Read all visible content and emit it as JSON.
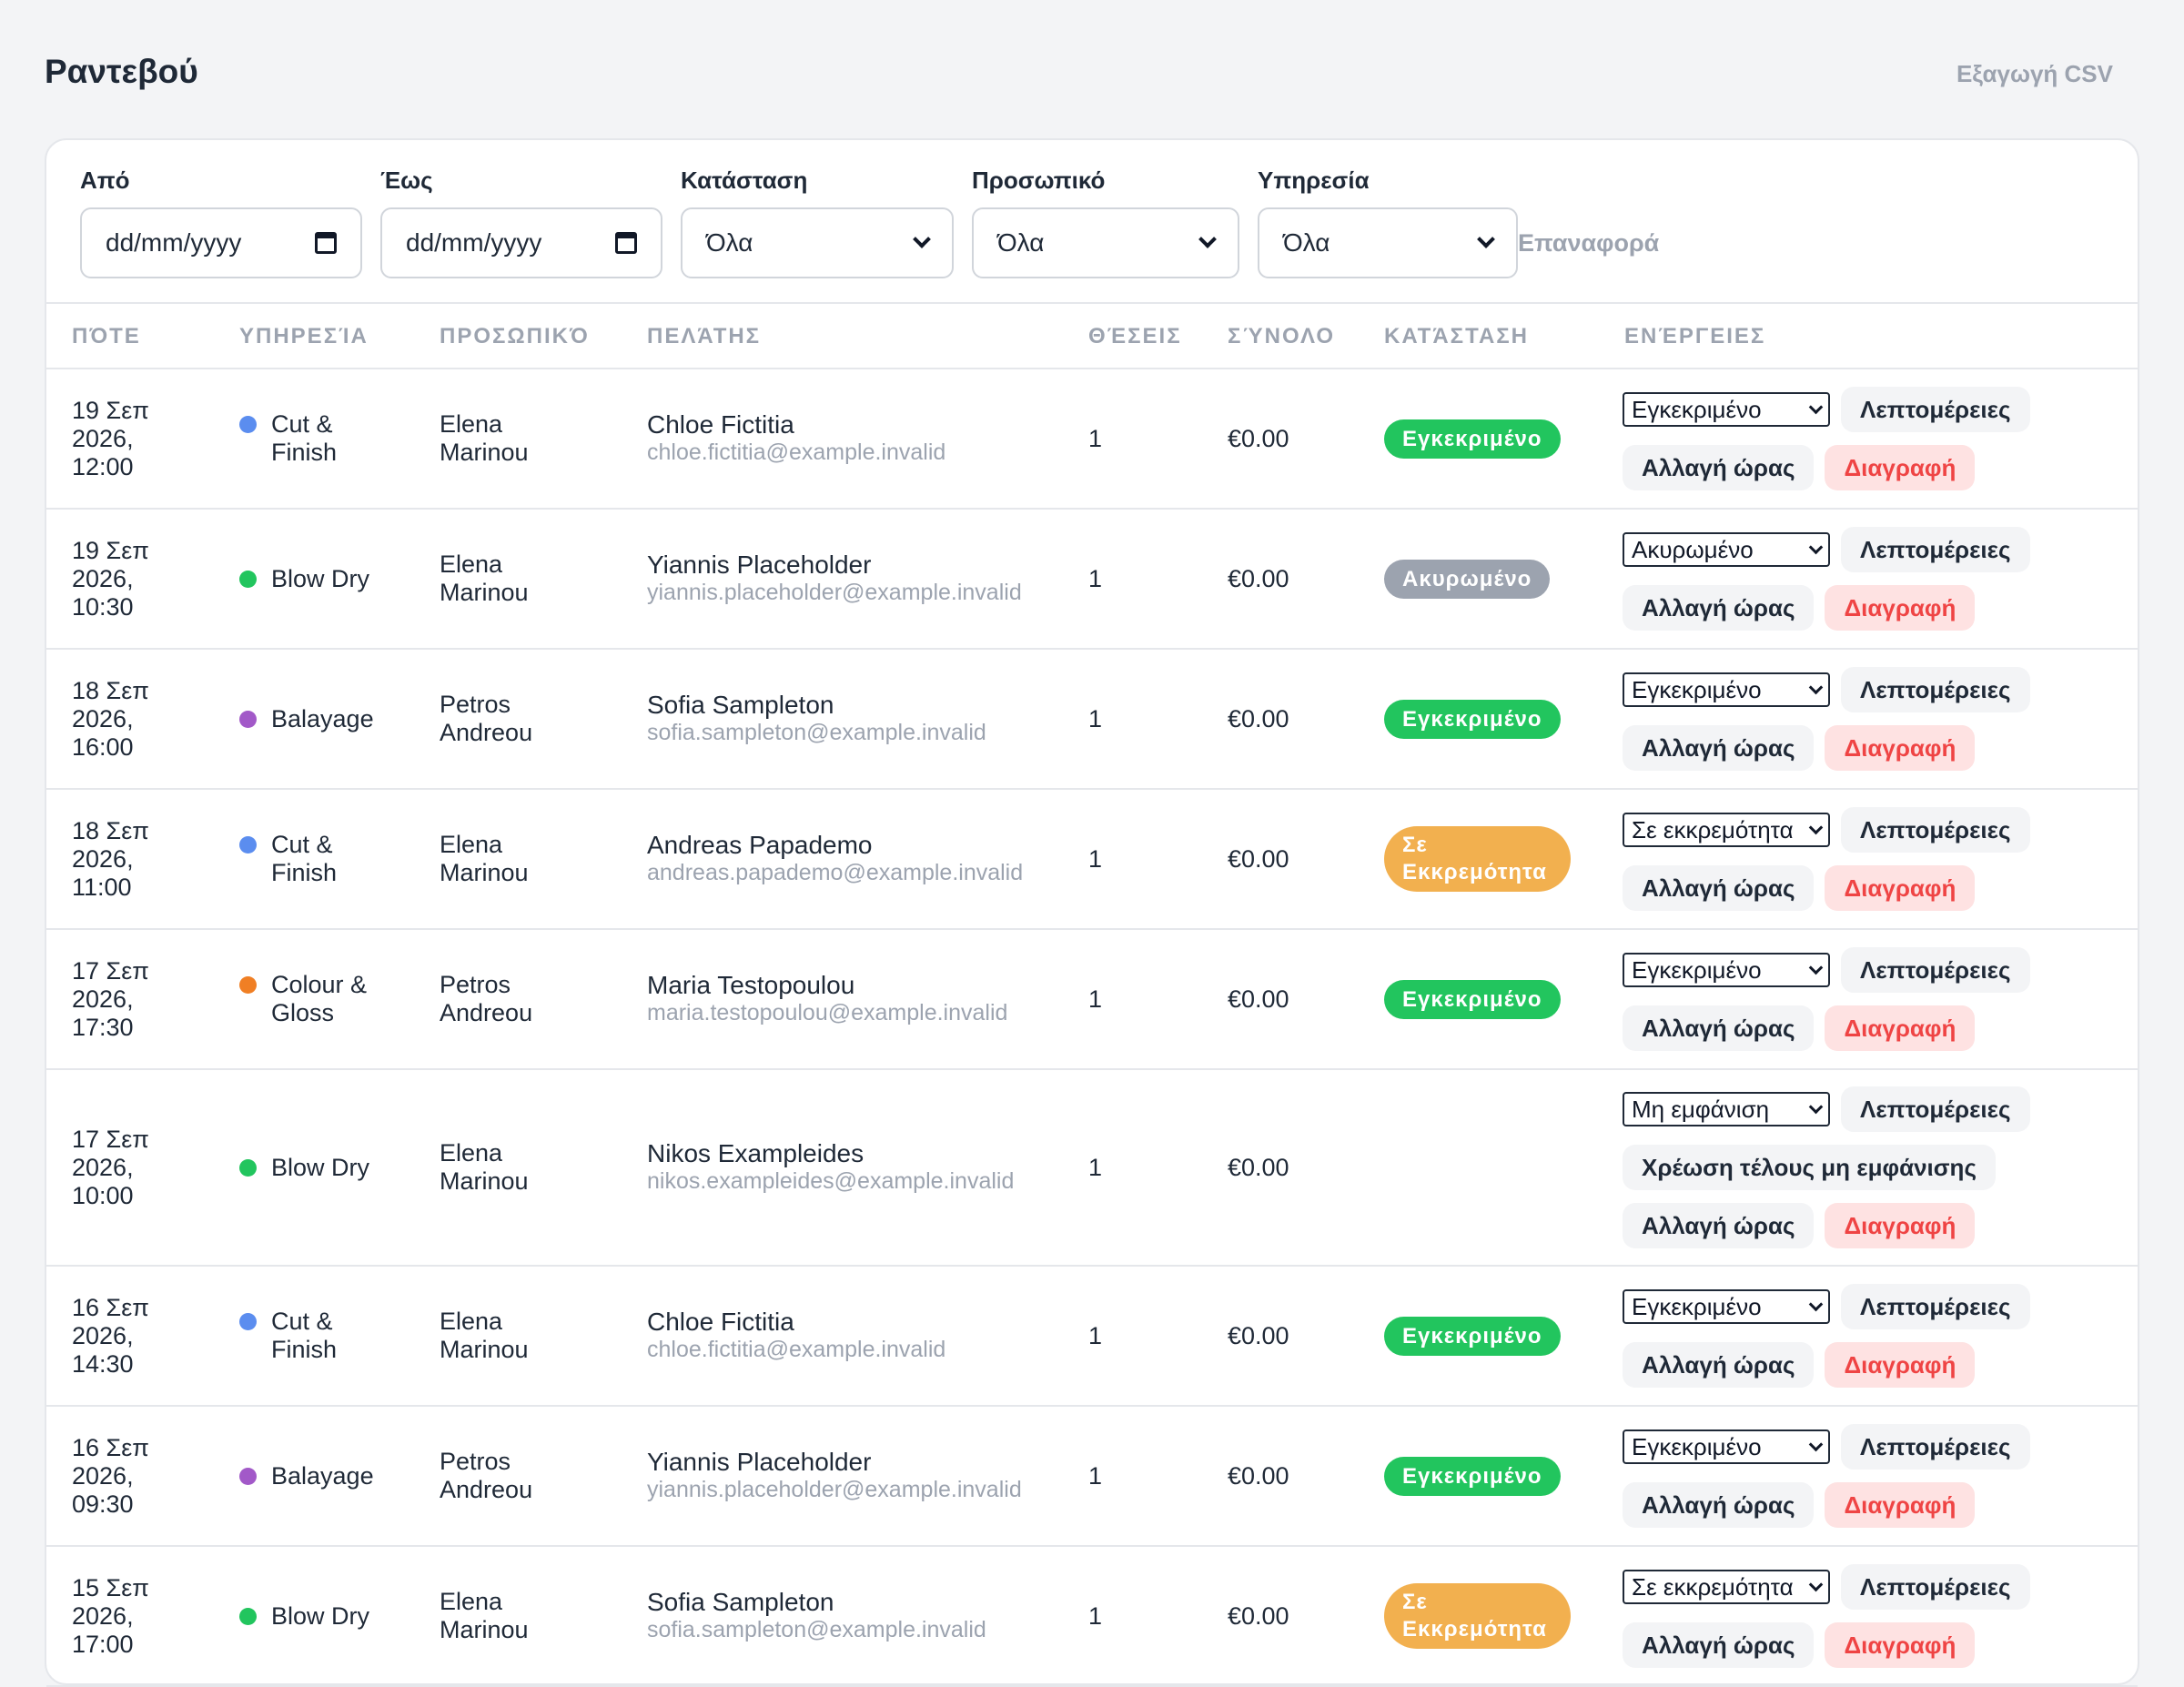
{
  "header": {
    "title": "Ραντεβού",
    "export_label": "Εξαγωγή CSV"
  },
  "filters": {
    "from_label": "Από",
    "from_value": "dd/mm/yyyy",
    "to_label": "Έως",
    "to_value": "dd/mm/yyyy",
    "status_label": "Κατάσταση",
    "status_value": "Όλα",
    "staff_label": "Προσωπικό",
    "staff_value": "Όλα",
    "service_label": "Υπηρεσία",
    "service_value": "Όλα",
    "reset_label": "Επαναφορά"
  },
  "table": {
    "headers": [
      "ΠΌΤΕ",
      "ΥΠΗΡΕΣΊΑ",
      "ΠΡΟΣΩΠΙΚΌ",
      "ΠΕΛΆΤΗΣ",
      "ΘΈΣΕΙΣ",
      "ΣΎΝΟΛΟ",
      "ΚΑΤΆΣΤΑΣΗ",
      "ΕΝΈΡΓΕΙΕΣ"
    ],
    "buttons": {
      "details": "Λεπτομέρειες",
      "reschedule": "Αλλαγή ώρας",
      "delete": "Διαγραφή",
      "noshow_fee": "Χρέωση τέλους μη εμφάνισης"
    },
    "colors": {
      "Cut & Finish": "#5b8def",
      "Blow Dry": "#22c55e",
      "Balayage": "#a259c8",
      "Colour & Gloss": "#f07f24"
    },
    "rows": [
      {
        "when": "19 Σεπ 2026, 12:00",
        "service": "Cut & Finish",
        "staff": "Elena Marinou",
        "customer": "Chloe Fictitia",
        "email": "chloe.fictitia@example.invalid",
        "seats": "1",
        "total": "€0.00",
        "status": "Εγκεκριμένο",
        "status_kind": "approved",
        "select": "Εγκεκριμένο"
      },
      {
        "when": "19 Σεπ 2026, 10:30",
        "service": "Blow Dry",
        "staff": "Elena Marinou",
        "customer": "Yiannis Placeholder",
        "email": "yiannis.placeholder@example.invalid",
        "seats": "1",
        "total": "€0.00",
        "status": "Ακυρωμένο",
        "status_kind": "cancelled",
        "select": "Ακυρωμένο"
      },
      {
        "when": "18 Σεπ 2026, 16:00",
        "service": "Balayage",
        "staff": "Petros Andreou",
        "customer": "Sofia Sampleton",
        "email": "sofia.sampleton@example.invalid",
        "seats": "1",
        "total": "€0.00",
        "status": "Εγκεκριμένο",
        "status_kind": "approved",
        "select": "Εγκεκριμένο"
      },
      {
        "when": "18 Σεπ 2026, 11:00",
        "service": "Cut & Finish",
        "staff": "Elena Marinou",
        "customer": "Andreas Papademo",
        "email": "andreas.papademo@example.invalid",
        "seats": "1",
        "total": "€0.00",
        "status": "Σε Εκκρεμότητα",
        "status_kind": "pending",
        "select": "Σε εκκρεμότητα"
      },
      {
        "when": "17 Σεπ 2026, 17:30",
        "service": "Colour & Gloss",
        "staff": "Petros Andreou",
        "customer": "Maria Testopoulou",
        "email": "maria.testopoulou@example.invalid",
        "seats": "1",
        "total": "€0.00",
        "status": "Εγκεκριμένο",
        "status_kind": "approved",
        "select": "Εγκεκριμένο"
      },
      {
        "when": "17 Σεπ 2026, 10:00",
        "service": "Blow Dry",
        "staff": "Elena Marinou",
        "customer": "Nikos Exampleides",
        "email": "nikos.exampleides@example.invalid",
        "seats": "1",
        "total": "€0.00",
        "status": "",
        "status_kind": "none",
        "select": "Μη εμφάνιση",
        "noshow": true
      },
      {
        "when": "16 Σεπ 2026, 14:30",
        "service": "Cut & Finish",
        "staff": "Elena Marinou",
        "customer": "Chloe Fictitia",
        "email": "chloe.fictitia@example.invalid",
        "seats": "1",
        "total": "€0.00",
        "status": "Εγκεκριμένο",
        "status_kind": "approved",
        "select": "Εγκεκριμένο"
      },
      {
        "when": "16 Σεπ 2026, 09:30",
        "service": "Balayage",
        "staff": "Petros Andreou",
        "customer": "Yiannis Placeholder",
        "email": "yiannis.placeholder@example.invalid",
        "seats": "1",
        "total": "€0.00",
        "status": "Εγκεκριμένο",
        "status_kind": "approved",
        "select": "Εγκεκριμένο"
      },
      {
        "when": "15 Σεπ 2026, 17:00",
        "service": "Blow Dry",
        "staff": "Elena Marinou",
        "customer": "Sofia Sampleton",
        "email": "sofia.sampleton@example.invalid",
        "seats": "1",
        "total": "€0.00",
        "status": "Σε Εκκρεμότητα",
        "status_kind": "pending",
        "select": "Σε εκκρεμότητα"
      }
    ]
  }
}
